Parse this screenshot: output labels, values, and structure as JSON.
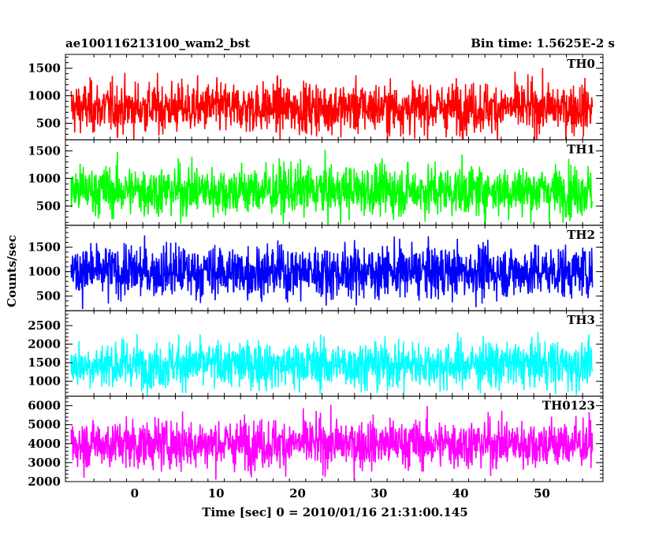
{
  "header": {
    "title": "ae100116213100_wam2_bst",
    "bin_time": "Bin time: 1.5625E-2 s"
  },
  "chart_data": {
    "type": "line",
    "xlabel": "Time [sec] 0 = 2010/01/16 21:31:00.145",
    "ylabel": "Counts/sec",
    "xlim": [
      -8.5,
      57.5
    ],
    "data_xrange": [
      -7.8,
      56.2
    ],
    "x_ticks": [
      0,
      10,
      20,
      30,
      40,
      50
    ],
    "x_tick_labels": [
      "0",
      "10",
      "20",
      "30",
      "40",
      "50"
    ],
    "panels": [
      {
        "label": "TH0",
        "color": "#ff0000",
        "ylim": [
          200,
          1750
        ],
        "y_ticks": [
          500,
          1000,
          1500
        ],
        "y_tick_labels": [
          "500",
          "1000",
          "1500"
        ],
        "mean": 780,
        "sigma": 230,
        "min": 150,
        "max": 1730
      },
      {
        "label": "TH1",
        "color": "#00ff00",
        "ylim": [
          150,
          1700
        ],
        "y_ticks": [
          500,
          1000,
          1500
        ],
        "y_tick_labels": [
          "500",
          "1000",
          "1500"
        ],
        "mean": 780,
        "sigma": 230,
        "min": 120,
        "max": 1680
      },
      {
        "label": "TH2",
        "color": "#0000ff",
        "ylim": [
          200,
          1950
        ],
        "y_ticks": [
          500,
          1000,
          1500
        ],
        "y_tick_labels": [
          "500",
          "1000",
          "1500"
        ],
        "mean": 1000,
        "sigma": 270,
        "min": 150,
        "max": 1950
      },
      {
        "label": "TH3",
        "color": "#00ffff",
        "ylim": [
          600,
          2900
        ],
        "y_ticks": [
          1000,
          1500,
          2000,
          2500
        ],
        "y_tick_labels": [
          "1000",
          "1500",
          "2000",
          "2500"
        ],
        "mean": 1450,
        "sigma": 320,
        "min": 550,
        "max": 2880
      },
      {
        "label": "TH0123",
        "color": "#ff00ff",
        "ylim": [
          2000,
          6500
        ],
        "y_ticks": [
          2000,
          3000,
          4000,
          5000,
          6000
        ],
        "y_tick_labels": [
          "2000",
          "3000",
          "4000",
          "5000",
          "6000"
        ],
        "mean": 4000,
        "sigma": 650,
        "min": 2100,
        "max": 6400
      }
    ]
  }
}
